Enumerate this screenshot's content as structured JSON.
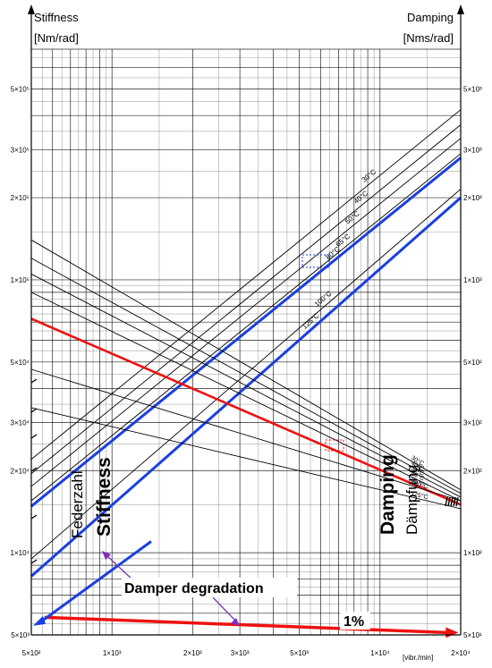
{
  "chart_data": {
    "type": "line",
    "scale": "log-log",
    "grid": true,
    "x_axis": {
      "unit_label": "[vibr./min]",
      "range": [
        500,
        20000
      ],
      "tick_labels": [
        "5×10²",
        "1×10³",
        "2×10³",
        "3×10³",
        "5×10³",
        "1×10⁴",
        "2×10⁴"
      ],
      "tick_values": [
        500,
        1000,
        2000,
        3000,
        5000,
        10000,
        20000
      ]
    },
    "left_axis": {
      "title": "Stiffness",
      "unit": "[Nm/rad]",
      "range": [
        5000,
        700000
      ],
      "tick_labels": [
        "5×10³",
        "1×10⁴",
        "2×10⁴",
        "3×10⁴",
        "5×10⁴",
        "1×10⁵",
        "2×10⁵",
        "3×10⁵",
        "5×10⁵"
      ],
      "tick_values": [
        5000,
        10000,
        20000,
        30000,
        50000,
        100000,
        200000,
        300000,
        500000
      ]
    },
    "right_axis": {
      "title": "Damping",
      "unit": "[Nms/rad]",
      "range": [
        50,
        7000
      ],
      "tick_labels": [
        "5×10¹",
        "1×10²",
        "2×10²",
        "3×10²",
        "5×10²",
        "1×10³",
        "2×10³",
        "3×10³",
        "5×10³"
      ],
      "tick_values": [
        50,
        100,
        200,
        300,
        500,
        1000,
        2000,
        3000,
        5000
      ]
    },
    "stiffness_curves": [
      {
        "temp": "30°C",
        "x": [
          500,
          20000
        ],
        "y": [
          22000,
          420000
        ]
      },
      {
        "temp": "40°C",
        "x": [
          500,
          20000
        ],
        "y": [
          19500,
          370000
        ]
      },
      {
        "temp": "50°C",
        "x": [
          500,
          20000
        ],
        "y": [
          17500,
          330000
        ]
      },
      {
        "temp": "65°C",
        "x": [
          500,
          20000
        ],
        "y": [
          15500,
          290000
        ]
      },
      {
        "temp": "80°C",
        "x": [
          500,
          20000
        ],
        "y": [
          14800,
          280000
        ],
        "highlight": true
      },
      {
        "temp": "100°C",
        "x": [
          500,
          20000
        ],
        "y": [
          9500,
          215000
        ]
      },
      {
        "temp": "125°C",
        "x": [
          500,
          20000
        ],
        "y": [
          8200,
          200000
        ],
        "highlight": true
      }
    ],
    "damping_curves": [
      {
        "temp": "30°C",
        "x": [
          500,
          20000
        ],
        "y": [
          1400,
          170
        ]
      },
      {
        "temp": "40°C",
        "x": [
          500,
          20000
        ],
        "y": [
          1200,
          165
        ]
      },
      {
        "temp": "50°C",
        "x": [
          500,
          20000
        ],
        "y": [
          1050,
          160
        ]
      },
      {
        "temp": "65°C",
        "x": [
          500,
          20000
        ],
        "y": [
          900,
          155
        ]
      },
      {
        "temp": "80°C",
        "x": [
          500,
          20000
        ],
        "y": [
          720,
          150
        ],
        "highlight": true
      },
      {
        "temp": "100°C",
        "x": [
          500,
          20000
        ],
        "y": [
          470,
          155
        ]
      },
      {
        "temp": "125°C",
        "x": [
          500,
          20000
        ],
        "y": [
          340,
          145
        ]
      }
    ],
    "degradation_line": {
      "x": [
        560,
        19000
      ],
      "y": [
        5800,
        5100
      ]
    },
    "annotations": {
      "stiffness": "Stiffness",
      "federzahl": "Federzahl",
      "damping": "Damping",
      "dampfung": "Dämpfung",
      "degradation": "Damper degradation",
      "one_percent": "1%"
    },
    "colors": {
      "blue": "#1a3fe0",
      "red": "#ee1111",
      "purple": "#7b2fbf",
      "grid": "#000000"
    }
  }
}
